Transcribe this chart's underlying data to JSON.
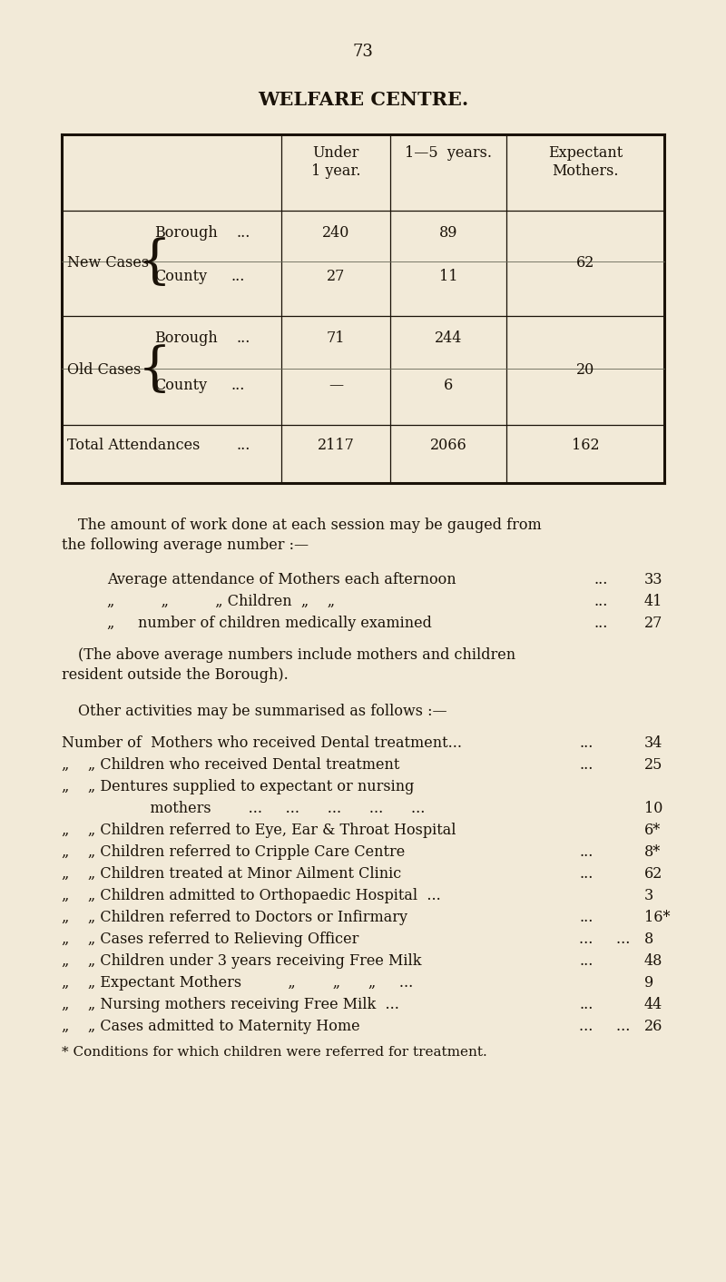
{
  "bg_color": "#f2ead8",
  "text_color": "#1a1208",
  "page_number": "73",
  "title": "WELFARE CENTRE.",
  "footnote": "* Conditions for which children were referred for treatment."
}
